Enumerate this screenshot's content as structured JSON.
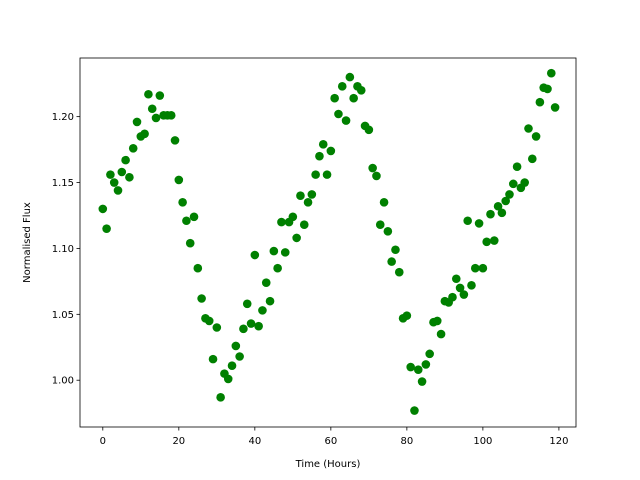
{
  "chart_data": {
    "type": "scatter",
    "title": "",
    "xlabel": "Time (Hours)",
    "ylabel": "Normalised Flux",
    "xlim": [
      -6,
      124.5
    ],
    "ylim": [
      0.9645,
      1.2445
    ],
    "xticks": [
      0,
      20,
      40,
      60,
      80,
      100,
      120
    ],
    "yticks": [
      1.0,
      1.05,
      1.1,
      1.15,
      1.2
    ],
    "ytick_labels": [
      "1.00",
      "1.05",
      "1.10",
      "1.15",
      "1.20"
    ],
    "grid": false,
    "marker_color": "#008000",
    "series": [
      {
        "x": [
          0,
          1,
          2,
          3,
          4,
          5,
          6,
          7,
          8,
          9,
          10,
          11,
          12,
          13,
          14,
          15,
          16,
          17,
          18,
          19,
          20,
          21,
          22,
          23,
          24,
          25,
          26,
          27,
          28,
          29,
          30,
          31,
          32,
          33,
          34,
          35,
          36,
          37,
          38,
          39,
          40,
          41,
          42,
          43,
          44,
          45,
          46,
          47,
          48,
          49,
          50,
          51,
          52,
          53,
          54,
          55,
          56,
          57,
          58,
          59,
          60,
          61,
          62,
          63,
          64,
          65,
          66,
          67,
          68,
          69,
          70,
          71,
          72,
          73,
          74,
          75,
          76,
          77,
          78,
          79,
          80,
          81,
          82,
          83,
          84,
          85,
          86,
          87,
          88,
          89,
          90,
          91,
          92,
          93,
          94,
          95,
          96,
          97,
          98,
          99,
          100,
          101,
          102,
          103,
          104,
          105,
          106,
          107,
          108,
          109,
          110,
          111,
          112,
          113,
          114,
          115,
          116,
          117,
          118,
          119
        ],
        "y": [
          1.13,
          1.115,
          1.156,
          1.15,
          1.144,
          1.158,
          1.167,
          1.154,
          1.176,
          1.196,
          1.185,
          1.187,
          1.217,
          1.206,
          1.199,
          1.216,
          1.201,
          1.201,
          1.201,
          1.182,
          1.152,
          1.135,
          1.121,
          1.104,
          1.124,
          1.085,
          1.062,
          1.047,
          1.045,
          1.016,
          1.04,
          0.987,
          1.005,
          1.001,
          1.011,
          1.026,
          1.018,
          1.039,
          1.058,
          1.043,
          1.095,
          1.041,
          1.053,
          1.074,
          1.06,
          1.098,
          1.085,
          1.12,
          1.097,
          1.12,
          1.124,
          1.108,
          1.14,
          1.118,
          1.135,
          1.141,
          1.156,
          1.17,
          1.179,
          1.156,
          1.174,
          1.214,
          1.202,
          1.223,
          1.197,
          1.23,
          1.214,
          1.223,
          1.22,
          1.193,
          1.19,
          1.161,
          1.155,
          1.118,
          1.135,
          1.113,
          1.09,
          1.099,
          1.082,
          1.047,
          1.049,
          1.01,
          0.977,
          1.008,
          0.999,
          1.012,
          1.02,
          1.044,
          1.045,
          1.035,
          1.06,
          1.059,
          1.063,
          1.077,
          1.07,
          1.065,
          1.121,
          1.072,
          1.085,
          1.119,
          1.085,
          1.105,
          1.126,
          1.106,
          1.132,
          1.127,
          1.136,
          1.141,
          1.149,
          1.162,
          1.146,
          1.15,
          1.191,
          1.168,
          1.185,
          1.211,
          1.222,
          1.221,
          1.233,
          1.207
        ]
      }
    ]
  }
}
